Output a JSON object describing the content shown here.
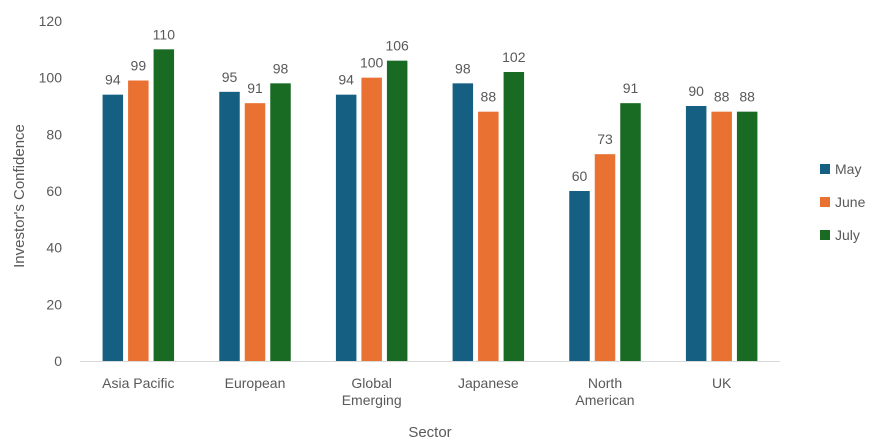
{
  "chart_data": {
    "type": "bar",
    "title": "",
    "xlabel": "Sector",
    "ylabel": "Investor's Confidence",
    "ylim": [
      0,
      120
    ],
    "yticks": [
      0,
      20,
      40,
      60,
      80,
      100,
      120
    ],
    "grid": false,
    "legend_position": "right",
    "categories": [
      [
        "Asia Pacific"
      ],
      [
        "European"
      ],
      [
        "Global",
        "Emerging"
      ],
      [
        "Japanese"
      ],
      [
        "North",
        "American"
      ],
      [
        "UK"
      ]
    ],
    "series": [
      {
        "name": "May",
        "color": "#156082",
        "values": [
          94,
          95,
          94,
          98,
          60,
          90
        ]
      },
      {
        "name": "June",
        "color": "#E97132",
        "values": [
          99,
          91,
          100,
          88,
          73,
          88
        ]
      },
      {
        "name": "July",
        "color": "#196B24",
        "values": [
          110,
          98,
          106,
          102,
          91,
          88
        ]
      }
    ]
  }
}
